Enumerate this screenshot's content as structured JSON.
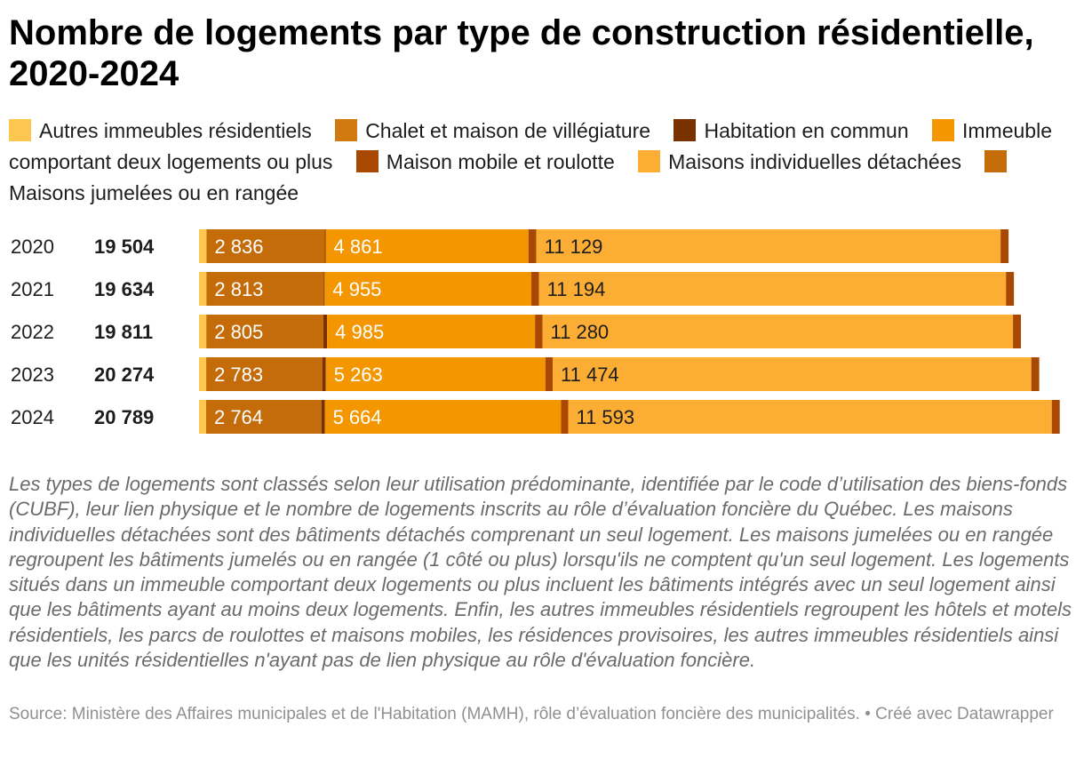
{
  "title": "Nombre de logements par type de construction résidentielle, 2020-2024",
  "colors": {
    "autres": "#fdc74f",
    "chalet": "#d07a10",
    "habitation_commun": "#7a3100",
    "immeuble": "#f39600",
    "maison_mobile": "#a94800",
    "maisons_individuelles": "#fcad33",
    "maisons_jumelees": "#c46b0a"
  },
  "legend": [
    {
      "label": "Autres immeubles résidentiels",
      "color": "#fdc74f"
    },
    {
      "label": "Chalet et maison de villégiature",
      "color": "#d07a10"
    },
    {
      "label": "Habitation en commun",
      "color": "#7a3100"
    },
    {
      "label": "Immeuble comportant deux logements ou plus",
      "color": "#f39600"
    },
    {
      "label": "Maison mobile et roulotte",
      "color": "#a94800"
    },
    {
      "label": "Maisons individuelles détachées",
      "color": "#fcad33"
    },
    {
      "label": "Maisons jumelées ou en rangée",
      "color": "#c46b0a"
    }
  ],
  "chart_data": {
    "type": "bar",
    "orientation": "horizontal",
    "stacked": true,
    "categories": [
      "2020",
      "2021",
      "2022",
      "2023",
      "2024"
    ],
    "totals": [
      19504,
      19634,
      19811,
      20274,
      20789
    ],
    "totals_labels": [
      "19 504",
      "19 634",
      "19 811",
      "20 274",
      "20 789"
    ],
    "series": [
      {
        "name": "Autres immeubles résidentiels",
        "color": "#fdc74f",
        "values": [
          180,
          178,
          175,
          172,
          170
        ]
      },
      {
        "name": "Chalet et maison de villégiature",
        "color": "#d07a10",
        "values": [
          0,
          0,
          0,
          0,
          0
        ]
      },
      {
        "name": "Maisons jumelées ou en rangée",
        "color": "#c46b0a",
        "values": [
          2836,
          2813,
          2805,
          2783,
          2764
        ],
        "labels": [
          "2 836",
          "2 813",
          "2 805",
          "2 783",
          "2 764"
        ]
      },
      {
        "name": "Habitation en commun",
        "color": "#7a3100",
        "values": [
          20,
          20,
          90,
          85,
          82
        ]
      },
      {
        "name": "Immeuble comportant deux logements ou plus",
        "color": "#f39600",
        "values": [
          4861,
          4955,
          4985,
          5263,
          5664
        ],
        "labels": [
          "4 861",
          "4 955",
          "4 985",
          "5 263",
          "5 664"
        ]
      },
      {
        "name": "Maison mobile et roulotte",
        "color": "#a94800",
        "values": [
          190,
          185,
          178,
          175,
          170
        ]
      },
      {
        "name": "Maisons individuelles détachées",
        "color": "#fcad33",
        "values": [
          11129,
          11194,
          11280,
          11474,
          11593
        ],
        "labels": [
          "11 129",
          "11 194",
          "11 280",
          "11 474",
          "11 593"
        ]
      },
      {
        "name": "Maison mobile et roulotte (fin)",
        "color": "#a94800",
        "values": [
          190,
          190,
          190,
          190,
          190
        ]
      }
    ],
    "xlim": [
      0,
      20789
    ],
    "grid": false,
    "legend_position": "top"
  },
  "notes": "Les types de logements sont classés selon leur utilisation prédominante, identifiée par le code d’utilisation des biens-fonds (CUBF), leur lien physique et le nombre de logements inscrits au rôle d’évaluation foncière du Québec. Les maisons individuelles détachées sont des bâtiments détachés comprenant un seul logement. Les maisons jumelées ou en rangée regroupent les bâtiments jumelés ou en rangée (1 côté ou plus) lorsqu'ils ne comptent qu'un seul logement. Les logements situés dans un immeuble comportant deux logements ou plus incluent les bâtiments intégrés avec un seul logement ainsi que les bâtiments ayant au moins deux logements. Enfin, les autres immeubles résidentiels regroupent les hôtels et motels résidentiels, les parcs de roulottes et maisons mobiles, les résidences provisoires, les autres immeubles résidentiels ainsi que les unités résidentielles n'ayant pas de lien physique au rôle d'évaluation foncière.",
  "source": "Source: Ministère des Affaires municipales et de l'Habitation (MAMH), rôle d’évaluation foncière des municipalités. • Créé avec Datawrapper"
}
